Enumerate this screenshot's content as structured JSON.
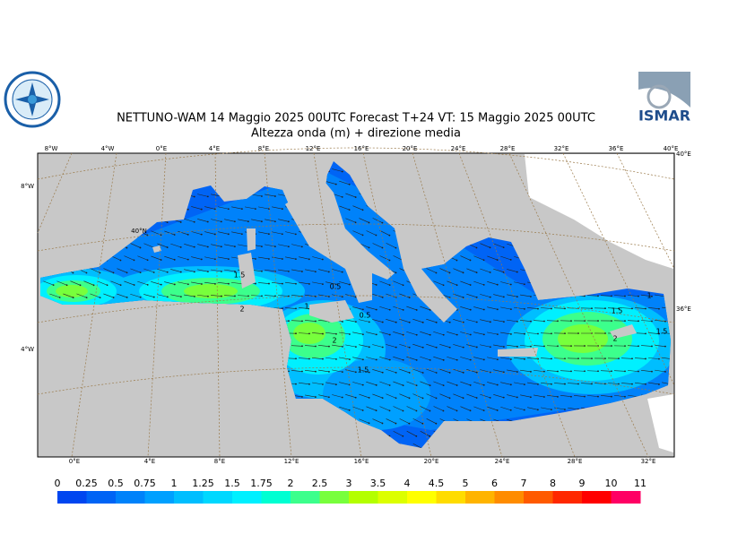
{
  "header": {
    "title": "NETTUNO-WAM  14   Maggio  2025 00UTC Forecast T+24 VT: 15   Maggio  2025 00UTC",
    "subtitle": "Altezza onda (m) + direzione media",
    "logo_right": "ISMAR"
  },
  "map": {
    "top_labels": [
      "8°W",
      "4°W",
      "0°E",
      "4°E",
      "8°E",
      "12°E",
      "16°E",
      "20°E",
      "24°E",
      "28°E",
      "32°E",
      "36°E",
      "40°E"
    ],
    "bottom_labels": [
      "0°E",
      "4°E",
      "8°E",
      "12°E",
      "16°E",
      "20°E",
      "24°E",
      "28°E",
      "32°E"
    ],
    "left_labels": [
      "8°W",
      "4°W"
    ],
    "right_labels": [
      "40°E",
      "36°E"
    ],
    "lat_label": "40°N",
    "contour_labels": [
      "1.5",
      "2",
      "1",
      "2",
      "0.5",
      "0.5",
      "1.5",
      "1.5",
      "2",
      "1",
      "1.5"
    ]
  },
  "legend": {
    "labels": [
      "0",
      "0.25",
      "0.5",
      "0.75",
      "1",
      "1.25",
      "1.5",
      "1.75",
      "2",
      "2.5",
      "3",
      "3.5",
      "4",
      "4.5",
      "5",
      "6",
      "7",
      "8",
      "9",
      "10",
      "11"
    ],
    "colors": [
      "#0046f0",
      "#0064f5",
      "#0082fa",
      "#00a0ff",
      "#00beff",
      "#00d8ff",
      "#00f0ff",
      "#00ffd2",
      "#3cff8c",
      "#78ff3c",
      "#b4ff00",
      "#dcff00",
      "#ffff00",
      "#ffdc00",
      "#ffb400",
      "#ff8c00",
      "#ff5a00",
      "#ff2800",
      "#ff0000",
      "#ff0064"
    ]
  }
}
